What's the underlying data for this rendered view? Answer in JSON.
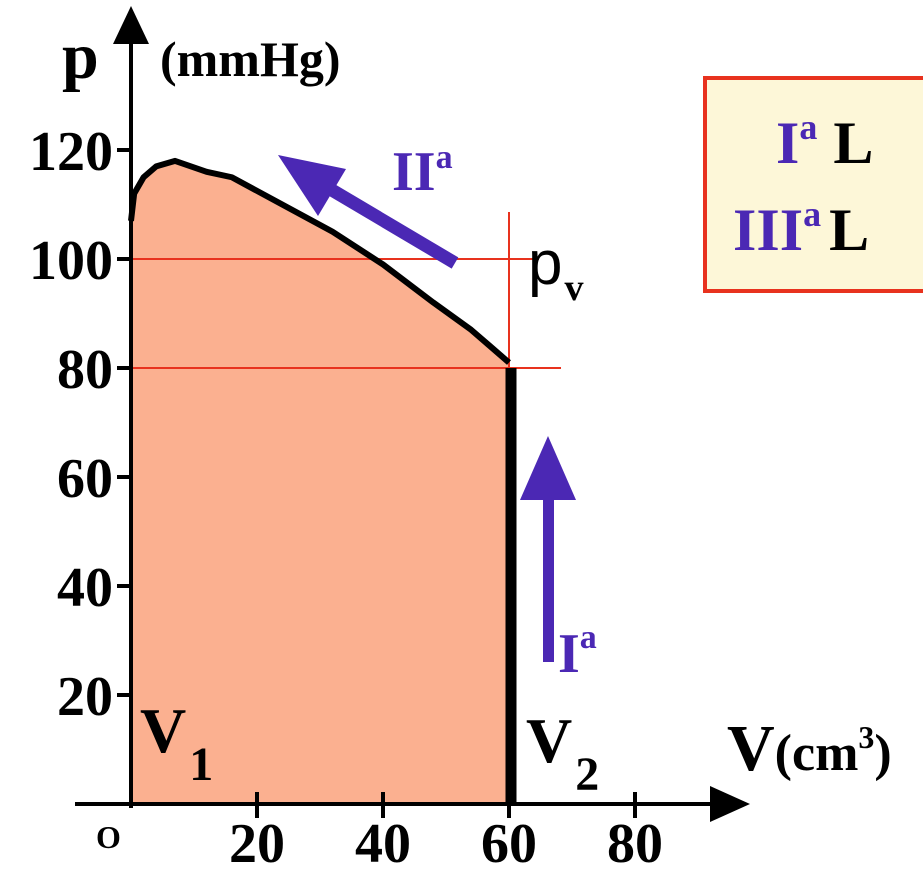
{
  "colors": {
    "fill": "#fbb090",
    "curve": "#000000",
    "arrow": "#4b28b4",
    "guide": "#e8321e",
    "legend_border": "#e8321e",
    "legend_bg": "#fdf7d8"
  },
  "chart_data": {
    "type": "area",
    "x_axis": {
      "symbol": "V",
      "unit": "(cm",
      "unit_sup": "3",
      "unit_close": ")",
      "ticks": [
        20,
        40,
        60,
        80
      ],
      "origin_label": "O",
      "xlim": [
        0,
        95
      ]
    },
    "y_axis": {
      "symbol": "p",
      "unit": "(mmHg)",
      "ticks": [
        20,
        40,
        60,
        80,
        100,
        120
      ],
      "ylim": [
        0,
        130
      ]
    },
    "curve": [
      {
        "x": 0,
        "y": 107
      },
      {
        "x": 0.5,
        "y": 112
      },
      {
        "x": 2,
        "y": 115
      },
      {
        "x": 4,
        "y": 117
      },
      {
        "x": 7,
        "y": 118
      },
      {
        "x": 12,
        "y": 116
      },
      {
        "x": 16,
        "y": 115
      },
      {
        "x": 24,
        "y": 110
      },
      {
        "x": 32,
        "y": 105
      },
      {
        "x": 40,
        "y": 99
      },
      {
        "x": 48,
        "y": 92
      },
      {
        "x": 54,
        "y": 87
      },
      {
        "x": 57,
        "y": 84
      },
      {
        "x": 60,
        "y": 81
      },
      {
        "x": 60,
        "y": 0
      }
    ],
    "guides": {
      "pv_value": 100,
      "p80_value": 80,
      "v_line": 60
    },
    "annotations": {
      "v1": "V",
      "v1_sub": "1",
      "v2": "V",
      "v2_sub": "2",
      "pv": "p",
      "pv_sub": "v",
      "phase_1": "I",
      "phase_1_sup": "a",
      "phase_2": "II",
      "phase_2_sup": "a"
    }
  },
  "legend": {
    "row1_roman": "I",
    "row1_sup": "a",
    "row1_text": "L",
    "row2_roman": "III",
    "row2_sup": "a",
    "row2_text": "L"
  }
}
